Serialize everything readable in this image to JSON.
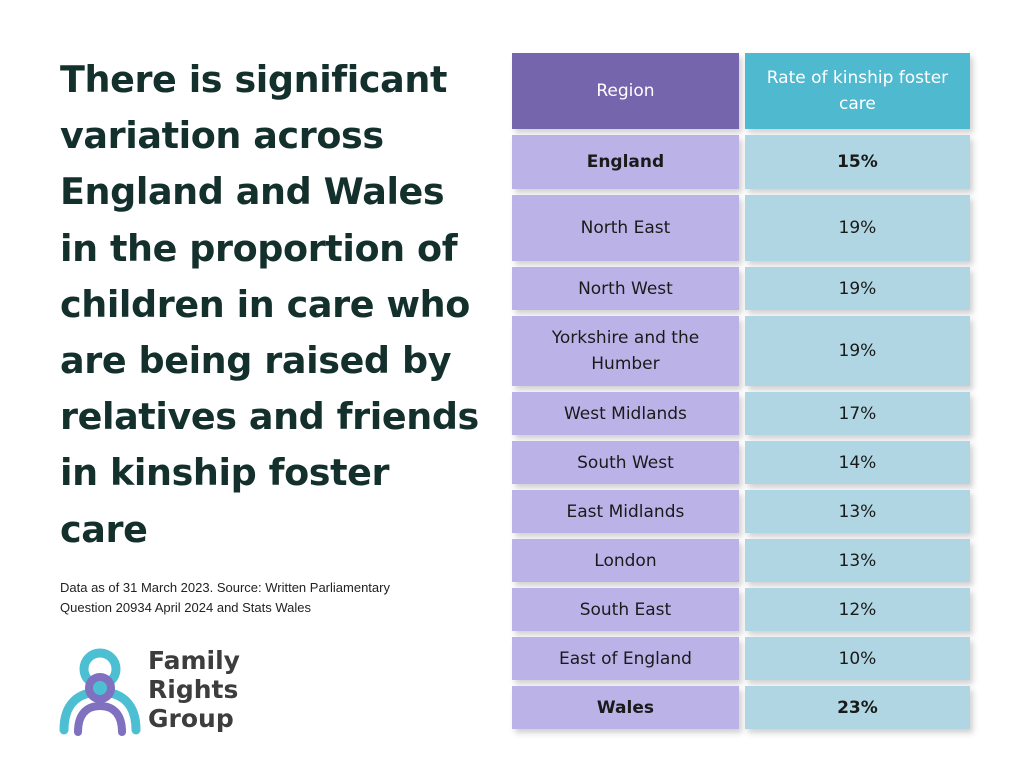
{
  "headline": "There is significant variation across England and Wales in the proportion of children in care who are being raised by relatives and friends in kinship foster care",
  "source": "Data as of 31 March 2023. Source: Written Parliamentary Question 20934 April 2024 and Stats Wales",
  "logo": {
    "lines": [
      "Family",
      "Rights",
      "Group"
    ],
    "colors": {
      "teal": "#4cbfd3",
      "purple": "#8070c0",
      "text": "#3d3d3d"
    }
  },
  "table": {
    "headers": {
      "region": "Region",
      "rate": "Rate of kinship foster care"
    },
    "rows": [
      {
        "region": "England",
        "rate": "15%",
        "bold": true
      },
      {
        "region": "North East",
        "rate": "19%",
        "bold": false
      },
      {
        "region": "North West",
        "rate": "19%",
        "bold": false
      },
      {
        "region": "Yorkshire and the Humber",
        "rate": "19%",
        "bold": false
      },
      {
        "region": "West Midlands",
        "rate": "17%",
        "bold": false
      },
      {
        "region": "South West",
        "rate": "14%",
        "bold": false
      },
      {
        "region": "East Midlands",
        "rate": "13%",
        "bold": false
      },
      {
        "region": "London",
        "rate": "13%",
        "bold": false
      },
      {
        "region": "South East",
        "rate": "12%",
        "bold": false
      },
      {
        "region": "East of England",
        "rate": "10%",
        "bold": false
      },
      {
        "region": "Wales",
        "rate": "23%",
        "bold": true
      }
    ]
  }
}
